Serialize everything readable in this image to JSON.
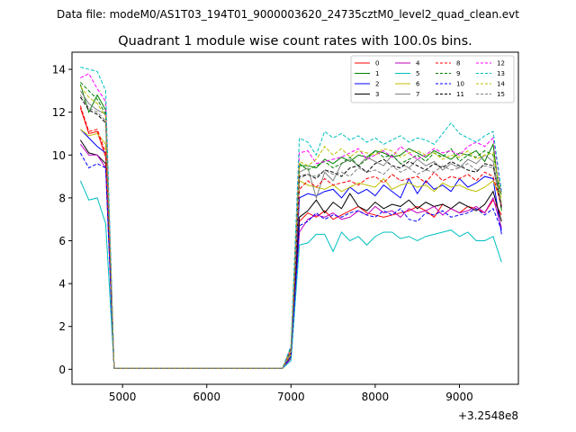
{
  "chart_data": {
    "type": "line",
    "suptitle": "Data file: modeM0/AS1T03_194T01_9000003620_24735cztM0_level2_quad_clean.evt",
    "title": "Quadrant 1 module wise count rates with 100.0s bins.",
    "xlabel": "",
    "ylabel": "",
    "x_offset_label": "+3.2548e8",
    "xlim": [
      4400,
      9700
    ],
    "ylim": [
      -0.7,
      14.8
    ],
    "xticks": [
      5000,
      6000,
      7000,
      8000,
      9000
    ],
    "xtick_labels": [
      "5000",
      "6000",
      "7000",
      "8000",
      "9000"
    ],
    "yticks": [
      0,
      2,
      4,
      6,
      8,
      10,
      12,
      14
    ],
    "ytick_labels": [
      "0",
      "2",
      "4",
      "6",
      "8",
      "10",
      "12",
      "14"
    ],
    "legend_position": "upper right",
    "legend_columns": 4,
    "x": [
      4500,
      4600,
      4700,
      4800,
      4900,
      5000,
      5100,
      5200,
      5300,
      5400,
      5500,
      5600,
      5700,
      5800,
      5900,
      6000,
      6100,
      6200,
      6300,
      6400,
      6500,
      6600,
      6700,
      6800,
      6900,
      7000,
      7100,
      7200,
      7300,
      7400,
      7500,
      7600,
      7700,
      7800,
      7900,
      8000,
      8100,
      8200,
      8300,
      8400,
      8500,
      8600,
      8700,
      8800,
      8900,
      9000,
      9100,
      9200,
      9300,
      9400,
      9500
    ],
    "series": [
      {
        "name": "0",
        "color": "#ff0000",
        "dash": "solid",
        "values": [
          12.2,
          11.0,
          11.1,
          9.9,
          0.05,
          0.05,
          0.05,
          0.05,
          0.05,
          0.05,
          0.05,
          0.05,
          0.05,
          0.05,
          0.05,
          0.05,
          0.05,
          0.05,
          0.05,
          0.05,
          0.05,
          0.05,
          0.05,
          0.05,
          0.05,
          0.8,
          6.9,
          7.3,
          7.1,
          7.4,
          7.0,
          7.2,
          7.4,
          7.6,
          7.3,
          7.2,
          7.1,
          7.2,
          7.3,
          7.4,
          7.6,
          7.4,
          7.1,
          7.7,
          7.5,
          7.3,
          7.6,
          7.5,
          7.3,
          7.9,
          7.2
        ]
      },
      {
        "name": "1",
        "color": "#008000",
        "dash": "solid",
        "values": [
          13.3,
          12.0,
          12.8,
          12.1,
          0.05,
          0.05,
          0.05,
          0.05,
          0.05,
          0.05,
          0.05,
          0.05,
          0.05,
          0.05,
          0.05,
          0.05,
          0.05,
          0.05,
          0.05,
          0.05,
          0.05,
          0.05,
          0.05,
          0.05,
          0.05,
          1.0,
          9.5,
          9.5,
          9.4,
          9.8,
          9.6,
          9.9,
          9.7,
          10.0,
          9.9,
          10.2,
          10.1,
          9.9,
          10.0,
          10.3,
          10.1,
          9.9,
          10.2,
          10.0,
          9.8,
          10.1,
          10.0,
          10.2,
          9.7,
          10.5,
          7.4
        ]
      },
      {
        "name": "2",
        "color": "#0000ff",
        "dash": "solid",
        "values": [
          11.2,
          10.8,
          10.4,
          10.1,
          0.05,
          0.05,
          0.05,
          0.05,
          0.05,
          0.05,
          0.05,
          0.05,
          0.05,
          0.05,
          0.05,
          0.05,
          0.05,
          0.05,
          0.05,
          0.05,
          0.05,
          0.05,
          0.05,
          0.05,
          0.05,
          0.7,
          8.0,
          8.2,
          8.1,
          8.3,
          8.4,
          8.0,
          8.5,
          8.2,
          8.4,
          8.1,
          8.6,
          8.3,
          8.0,
          8.9,
          8.2,
          8.8,
          8.4,
          8.6,
          8.3,
          8.9,
          8.5,
          8.7,
          9.0,
          8.9,
          6.3
        ]
      },
      {
        "name": "3",
        "color": "#000000",
        "dash": "solid",
        "values": [
          10.7,
          10.1,
          10.0,
          9.6,
          0.05,
          0.05,
          0.05,
          0.05,
          0.05,
          0.05,
          0.05,
          0.05,
          0.05,
          0.05,
          0.05,
          0.05,
          0.05,
          0.05,
          0.05,
          0.05,
          0.05,
          0.05,
          0.05,
          0.05,
          0.05,
          0.6,
          7.1,
          7.4,
          7.9,
          7.3,
          7.8,
          7.5,
          8.2,
          7.6,
          7.4,
          7.8,
          7.5,
          7.7,
          7.6,
          7.9,
          7.5,
          7.8,
          7.6,
          7.7,
          7.5,
          7.8,
          7.6,
          7.4,
          7.7,
          8.3,
          6.9
        ]
      },
      {
        "name": "4",
        "color": "#bf00bf",
        "dash": "solid",
        "values": [
          10.5,
          10.0,
          10.0,
          9.4,
          0.05,
          0.05,
          0.05,
          0.05,
          0.05,
          0.05,
          0.05,
          0.05,
          0.05,
          0.05,
          0.05,
          0.05,
          0.05,
          0.05,
          0.05,
          0.05,
          0.05,
          0.05,
          0.05,
          0.05,
          0.05,
          0.5,
          6.4,
          7.0,
          7.2,
          7.1,
          7.3,
          7.0,
          7.1,
          7.4,
          7.2,
          7.6,
          7.3,
          7.4,
          7.1,
          7.5,
          7.3,
          7.4,
          7.6,
          7.2,
          7.5,
          7.3,
          7.4,
          7.6,
          7.3,
          8.0,
          6.6
        ]
      },
      {
        "name": "5",
        "color": "#00bfbf",
        "dash": "solid",
        "values": [
          8.8,
          7.9,
          8.0,
          6.8,
          0.05,
          0.05,
          0.05,
          0.05,
          0.05,
          0.05,
          0.05,
          0.05,
          0.05,
          0.05,
          0.05,
          0.05,
          0.05,
          0.05,
          0.05,
          0.05,
          0.05,
          0.05,
          0.05,
          0.05,
          0.05,
          0.4,
          5.8,
          5.9,
          6.3,
          6.3,
          5.5,
          6.4,
          6.0,
          6.2,
          5.8,
          6.2,
          6.4,
          6.4,
          6.1,
          6.2,
          6.0,
          6.2,
          6.3,
          6.4,
          6.5,
          6.2,
          6.4,
          6.0,
          6.0,
          6.2,
          5.0
        ]
      },
      {
        "name": "6",
        "color": "#bfbf00",
        "dash": "solid",
        "values": [
          11.2,
          10.9,
          11.0,
          10.5,
          0.05,
          0.05,
          0.05,
          0.05,
          0.05,
          0.05,
          0.05,
          0.05,
          0.05,
          0.05,
          0.05,
          0.05,
          0.05,
          0.05,
          0.05,
          0.05,
          0.05,
          0.05,
          0.05,
          0.05,
          0.05,
          0.7,
          8.8,
          8.6,
          8.5,
          8.4,
          8.6,
          8.3,
          8.5,
          8.7,
          8.6,
          8.5,
          8.9,
          8.4,
          8.6,
          8.7,
          8.5,
          8.6,
          8.3,
          8.7,
          8.5,
          8.6,
          8.4,
          8.3,
          8.5,
          8.8,
          7.8
        ]
      },
      {
        "name": "7",
        "color": "#808080",
        "dash": "solid",
        "values": [
          13.0,
          12.4,
          12.1,
          11.9,
          0.05,
          0.05,
          0.05,
          0.05,
          0.05,
          0.05,
          0.05,
          0.05,
          0.05,
          0.05,
          0.05,
          0.05,
          0.05,
          0.05,
          0.05,
          0.05,
          0.05,
          0.05,
          0.05,
          0.05,
          0.05,
          0.9,
          9.2,
          9.4,
          8.0,
          9.2,
          8.8,
          9.6,
          9.8,
          9.5,
          9.9,
          9.7,
          9.5,
          10.0,
          9.6,
          9.4,
          9.8,
          9.5,
          9.7,
          9.3,
          9.6,
          9.4,
          9.8,
          9.6,
          10.0,
          9.7,
          7.6
        ]
      },
      {
        "name": "8",
        "color": "#ff0000",
        "dash": "dashed",
        "values": [
          12.3,
          11.1,
          11.2,
          10.1,
          0.05,
          0.05,
          0.05,
          0.05,
          0.05,
          0.05,
          0.05,
          0.05,
          0.05,
          0.05,
          0.05,
          0.05,
          0.05,
          0.05,
          0.05,
          0.05,
          0.05,
          0.05,
          0.05,
          0.05,
          0.05,
          0.8,
          8.4,
          8.8,
          8.5,
          8.9,
          8.6,
          8.7,
          8.8,
          8.6,
          8.9,
          9.0,
          8.7,
          9.1,
          8.8,
          8.9,
          9.0,
          8.7,
          9.2,
          8.8,
          9.0,
          8.9,
          9.1,
          8.8,
          9.2,
          9.0,
          7.6
        ]
      },
      {
        "name": "9",
        "color": "#008000",
        "dash": "dashed",
        "values": [
          13.4,
          13.0,
          12.6,
          11.9,
          0.05,
          0.05,
          0.05,
          0.05,
          0.05,
          0.05,
          0.05,
          0.05,
          0.05,
          0.05,
          0.05,
          0.05,
          0.05,
          0.05,
          0.05,
          0.05,
          0.05,
          0.05,
          0.05,
          0.05,
          0.05,
          1.0,
          9.6,
          9.3,
          9.5,
          9.7,
          9.4,
          9.6,
          9.9,
          9.5,
          9.8,
          10.2,
          9.9,
          10.0,
          9.6,
          9.8,
          10.0,
          9.7,
          10.1,
          9.9,
          10.3,
          9.7,
          10.0,
          9.9,
          10.2,
          10.0,
          8.1
        ]
      },
      {
        "name": "10",
        "color": "#0000ff",
        "dash": "dashed",
        "values": [
          10.1,
          9.4,
          9.6,
          9.4,
          0.05,
          0.05,
          0.05,
          0.05,
          0.05,
          0.05,
          0.05,
          0.05,
          0.05,
          0.05,
          0.05,
          0.05,
          0.05,
          0.05,
          0.05,
          0.05,
          0.05,
          0.05,
          0.05,
          0.05,
          0.05,
          0.6,
          6.7,
          6.9,
          7.3,
          7.0,
          7.2,
          7.1,
          7.3,
          7.4,
          7.2,
          7.1,
          7.4,
          7.2,
          7.5,
          7.0,
          6.9,
          7.3,
          7.2,
          7.4,
          7.1,
          7.2,
          7.3,
          7.5,
          7.2,
          7.5,
          6.5
        ]
      },
      {
        "name": "11",
        "color": "#000000",
        "dash": "dashed",
        "values": [
          12.7,
          12.1,
          11.9,
          11.5,
          0.05,
          0.05,
          0.05,
          0.05,
          0.05,
          0.05,
          0.05,
          0.05,
          0.05,
          0.05,
          0.05,
          0.05,
          0.05,
          0.05,
          0.05,
          0.05,
          0.05,
          0.05,
          0.05,
          0.05,
          0.05,
          0.9,
          9.0,
          9.1,
          8.9,
          9.3,
          9.2,
          9.0,
          9.4,
          9.5,
          9.2,
          9.6,
          9.8,
          9.5,
          9.4,
          9.7,
          9.5,
          9.3,
          9.6,
          9.4,
          9.7,
          9.5,
          9.3,
          9.2,
          9.6,
          9.5,
          7.5
        ]
      },
      {
        "name": "12",
        "color": "#ff00ff",
        "dash": "dashed",
        "values": [
          13.6,
          13.8,
          13.1,
          12.5,
          0.05,
          0.05,
          0.05,
          0.05,
          0.05,
          0.05,
          0.05,
          0.05,
          0.05,
          0.05,
          0.05,
          0.05,
          0.05,
          0.05,
          0.05,
          0.05,
          0.05,
          0.05,
          0.05,
          0.05,
          0.05,
          1.0,
          10.1,
          10.2,
          9.6,
          9.7,
          9.8,
          9.9,
          10.1,
          10.3,
          9.8,
          10.0,
          10.2,
          9.9,
          10.4,
          10.1,
          9.8,
          10.0,
          10.3,
          10.1,
          10.2,
          10.0,
          10.4,
          10.6,
          10.4,
          10.8,
          8.2
        ]
      },
      {
        "name": "13",
        "color": "#00bfbf",
        "dash": "dashed",
        "values": [
          14.1,
          14.0,
          13.9,
          13.0,
          0.05,
          0.05,
          0.05,
          0.05,
          0.05,
          0.05,
          0.05,
          0.05,
          0.05,
          0.05,
          0.05,
          0.05,
          0.05,
          0.05,
          0.05,
          0.05,
          0.05,
          0.05,
          0.05,
          0.05,
          0.05,
          1.1,
          10.8,
          10.6,
          10.0,
          11.1,
          10.8,
          11.0,
          10.7,
          10.9,
          10.6,
          10.8,
          10.5,
          10.7,
          10.9,
          10.6,
          10.8,
          10.7,
          10.5,
          11.0,
          11.5,
          11.0,
          10.8,
          10.6,
          10.9,
          11.1,
          8.3
        ]
      },
      {
        "name": "14",
        "color": "#bfbf00",
        "dash": "dashed",
        "values": [
          13.2,
          12.7,
          12.4,
          11.8,
          0.05,
          0.05,
          0.05,
          0.05,
          0.05,
          0.05,
          0.05,
          0.05,
          0.05,
          0.05,
          0.05,
          0.05,
          0.05,
          0.05,
          0.05,
          0.05,
          0.05,
          0.05,
          0.05,
          0.05,
          0.05,
          0.9,
          9.7,
          9.5,
          9.8,
          10.4,
          10.0,
          10.3,
          9.9,
          10.2,
          10.1,
          10.0,
          10.3,
          10.2,
          9.9,
          10.1,
          10.2,
          10.0,
          10.1,
          9.8,
          10.0,
          9.9,
          10.2,
          9.8,
          10.0,
          10.1,
          7.9
        ]
      },
      {
        "name": "15",
        "color": "#808080",
        "dash": "dashed",
        "values": [
          12.8,
          12.2,
          12.0,
          11.6,
          0.05,
          0.05,
          0.05,
          0.05,
          0.05,
          0.05,
          0.05,
          0.05,
          0.05,
          0.05,
          0.05,
          0.05,
          0.05,
          0.05,
          0.05,
          0.05,
          0.05,
          0.05,
          0.05,
          0.05,
          0.05,
          0.8,
          8.9,
          9.1,
          9.0,
          9.3,
          9.1,
          9.2,
          9.0,
          9.4,
          9.2,
          9.3,
          9.1,
          9.5,
          9.2,
          9.4,
          9.1,
          9.3,
          9.2,
          9.5,
          9.3,
          9.4,
          9.6,
          9.3,
          9.5,
          9.4,
          7.7
        ]
      }
    ]
  }
}
